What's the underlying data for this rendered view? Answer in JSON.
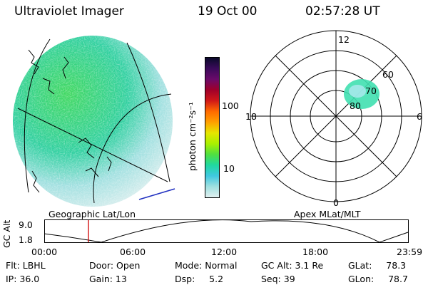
{
  "header": {
    "instrument": "Ultraviolet Imager",
    "date": "19 Oct 00",
    "time": "02:57:28 UT"
  },
  "colorbar": {
    "label": "photon cm⁻²s⁻¹",
    "ticks": [
      "100",
      "10"
    ],
    "colors": [
      "#0a0a2a",
      "#3a0a5a",
      "#6a0a6a",
      "#a0002a",
      "#d01818",
      "#ff6a00",
      "#ffa000",
      "#e6e600",
      "#aaf000",
      "#50e040",
      "#20d8a0",
      "#40c8e0",
      "#a0e0e0",
      "#e0f0f0"
    ]
  },
  "polar_plot": {
    "mlt_labels": {
      "top": "12",
      "left": "18",
      "right": "6",
      "bottom": "0"
    },
    "lat_labels": [
      "60",
      "70",
      "80"
    ]
  },
  "timeline": {
    "ylabel": "GC Alt",
    "yticks": [
      "9.0",
      "1.8"
    ],
    "left_title": "Geographic Lat/Lon",
    "right_title": "Apex MLat/MLT",
    "xticks": [
      "00:00",
      "06:00",
      "12:00",
      "18:00",
      "23:59"
    ]
  },
  "status": {
    "filter": "Flt: LBHL",
    "ip": "IP: 36.0",
    "door": "Door: Open",
    "gain": "Gain: 13",
    "mode": "Mode: Normal",
    "dsp": "Dsp:     5.2",
    "gc_alt": "GC Alt: 3.1 Re",
    "seq": "Seq: 39",
    "glat": "GLat:     78.3",
    "glon": "GLon:     78.7"
  }
}
